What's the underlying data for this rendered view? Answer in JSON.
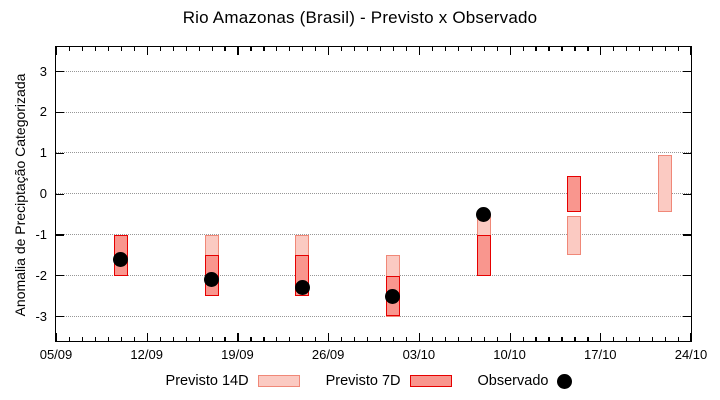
{
  "chart_data": {
    "type": "bar",
    "title": "Rio Amazonas (Brasil) - Previsto x Observado",
    "ylabel": "Anomalia de Preciptação Categorizada",
    "xlabel": "",
    "ylim": [
      -3.6,
      3.6
    ],
    "yticks": [
      3,
      2,
      1,
      0,
      -1,
      -2,
      -3
    ],
    "xlim": [
      0,
      49
    ],
    "xticks": [
      {
        "day": 0,
        "label": "05/09"
      },
      {
        "day": 7,
        "label": "12/09"
      },
      {
        "day": 14,
        "label": "19/09"
      },
      {
        "day": 21,
        "label": "26/09"
      },
      {
        "day": 28,
        "label": "03/10"
      },
      {
        "day": 35,
        "label": "10/10"
      },
      {
        "day": 42,
        "label": "17/10"
      },
      {
        "day": 49,
        "label": "24/10"
      }
    ],
    "minor_xtick_every_days": 1,
    "grid": {
      "horizontal_dotted": true,
      "color": "#979797"
    },
    "series": [
      {
        "name": "Previsto 14D",
        "type": "range-bar",
        "fill": "#fbcac2",
        "border": "#f08878",
        "bars": [
          {
            "day": 12,
            "low": -2.5,
            "high": -1.0
          },
          {
            "day": 19,
            "low": -2.5,
            "high": -1.0
          },
          {
            "day": 26,
            "low": -3.0,
            "high": -1.5
          },
          {
            "day": 33,
            "low": -2.0,
            "high": -0.5
          },
          {
            "day": 40,
            "low": -1.5,
            "high": -0.55
          },
          {
            "day": 47,
            "low": -0.45,
            "high": 0.95
          }
        ]
      },
      {
        "name": "Previsto 7D",
        "type": "range-bar",
        "fill": "#f9968e",
        "border": "#e60000",
        "bars": [
          {
            "day": 5,
            "low": -2.0,
            "high": -1.0
          },
          {
            "day": 12,
            "low": -2.5,
            "high": -1.5
          },
          {
            "day": 19,
            "low": -2.5,
            "high": -1.5
          },
          {
            "day": 26,
            "low": -3.0,
            "high": -2.0
          },
          {
            "day": 33,
            "low": -2.0,
            "high": -1.0
          },
          {
            "day": 40,
            "low": -0.45,
            "high": 0.45
          }
        ]
      },
      {
        "name": "Observado",
        "type": "point",
        "color": "#000000",
        "points": [
          {
            "day": 5,
            "value": -1.6
          },
          {
            "day": 12,
            "value": -2.1
          },
          {
            "day": 19,
            "value": -2.3
          },
          {
            "day": 26,
            "value": -2.5
          },
          {
            "day": 33,
            "value": -0.5
          }
        ]
      }
    ],
    "legend": [
      {
        "label": "Previsto 14D",
        "swatch": "box",
        "fill": "#fbcac2",
        "border": "#f08878"
      },
      {
        "label": "Previsto 7D",
        "swatch": "box",
        "fill": "#f9968e",
        "border": "#e60000"
      },
      {
        "label": "Observado",
        "swatch": "dot",
        "fill": "#000000"
      }
    ]
  }
}
